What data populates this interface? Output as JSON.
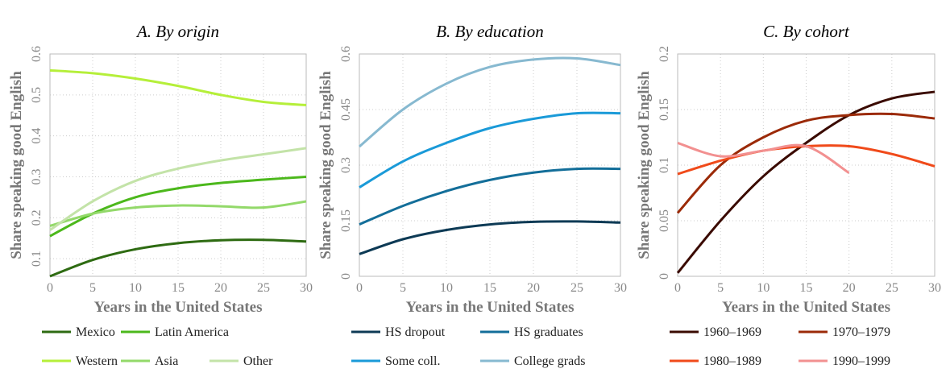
{
  "chart_data": [
    {
      "type": "line",
      "title": "A. By origin",
      "x_label": "Years in the United States",
      "y_label": "Share speaking good English",
      "x": [
        0,
        5,
        10,
        15,
        20,
        25,
        30
      ],
      "xlim": [
        0,
        30
      ],
      "xticks": [
        0,
        5,
        10,
        15,
        20,
        25,
        30
      ],
      "ylim": [
        0.057,
        0.6
      ],
      "yticks": [
        0.1,
        0.2,
        0.3,
        0.4,
        0.5,
        0.6
      ],
      "grid": true,
      "series": [
        {
          "name": "Mexico",
          "color": "#2e6b12",
          "values": [
            0.057,
            0.097,
            0.123,
            0.138,
            0.145,
            0.146,
            0.142
          ]
        },
        {
          "name": "Latin America",
          "color": "#4cb81c",
          "values": [
            0.155,
            0.21,
            0.25,
            0.272,
            0.285,
            0.293,
            0.3
          ]
        },
        {
          "name": "Western",
          "color": "#b5ef3a",
          "values": [
            0.56,
            0.553,
            0.54,
            0.522,
            0.5,
            0.483,
            0.475
          ]
        },
        {
          "name": "Asia",
          "color": "#93d96a",
          "values": [
            0.18,
            0.21,
            0.225,
            0.23,
            0.228,
            0.225,
            0.24
          ]
        },
        {
          "name": "Other",
          "color": "#c3e3a8",
          "values": [
            0.17,
            0.24,
            0.29,
            0.32,
            0.34,
            0.355,
            0.37
          ]
        }
      ]
    },
    {
      "type": "line",
      "title": "B. By education",
      "x_label": "Years in the United States",
      "y_label": "Share speaking good English",
      "x": [
        0,
        5,
        10,
        15,
        20,
        25,
        30
      ],
      "xlim": [
        0,
        30
      ],
      "xticks": [
        0,
        5,
        10,
        15,
        20,
        25,
        30
      ],
      "ylim": [
        0,
        0.6
      ],
      "yticks": [
        0,
        0.15,
        0.3,
        0.45,
        0.6
      ],
      "grid": true,
      "series": [
        {
          "name": "HS dropout",
          "color": "#0d3a55",
          "values": [
            0.06,
            0.1,
            0.125,
            0.14,
            0.147,
            0.148,
            0.145
          ]
        },
        {
          "name": "HS graduates",
          "color": "#136e99",
          "values": [
            0.14,
            0.19,
            0.23,
            0.26,
            0.28,
            0.29,
            0.29
          ]
        },
        {
          "name": "Some coll.",
          "color": "#1a9ad8",
          "values": [
            0.24,
            0.31,
            0.36,
            0.4,
            0.425,
            0.44,
            0.44
          ]
        },
        {
          "name": "College grads",
          "color": "#87b9d0",
          "values": [
            0.35,
            0.45,
            0.52,
            0.565,
            0.585,
            0.588,
            0.57
          ]
        }
      ]
    },
    {
      "type": "line",
      "title": "C. By cohort",
      "x_label": "Years in the United States",
      "y_label": "Share speaking good English",
      "x": [
        0,
        5,
        10,
        15,
        20,
        25,
        30
      ],
      "xlim": [
        0,
        30
      ],
      "xticks": [
        0,
        5,
        10,
        15,
        20,
        25,
        30
      ],
      "ylim": [
        0,
        0.2
      ],
      "yticks": [
        0,
        0.05,
        0.1,
        0.15,
        0.2
      ],
      "grid": true,
      "series": [
        {
          "name": "1960–1969",
          "color": "#3a0a00",
          "values": [
            0.003,
            0.05,
            0.09,
            0.12,
            0.145,
            0.16,
            0.166
          ]
        },
        {
          "name": "1970–1979",
          "color": "#9b2a08",
          "values": [
            0.057,
            0.1,
            0.125,
            0.14,
            0.145,
            0.146,
            0.142
          ]
        },
        {
          "name": "1980–1989",
          "color": "#f04a1a",
          "values": [
            0.092,
            0.104,
            0.113,
            0.117,
            0.117,
            0.11,
            0.099
          ]
        },
        {
          "name": "1990–1999",
          "color": "#f29090",
          "values": [
            0.12,
            0.108,
            0.113,
            0.117,
            0.093,
            null,
            null
          ]
        }
      ]
    }
  ]
}
